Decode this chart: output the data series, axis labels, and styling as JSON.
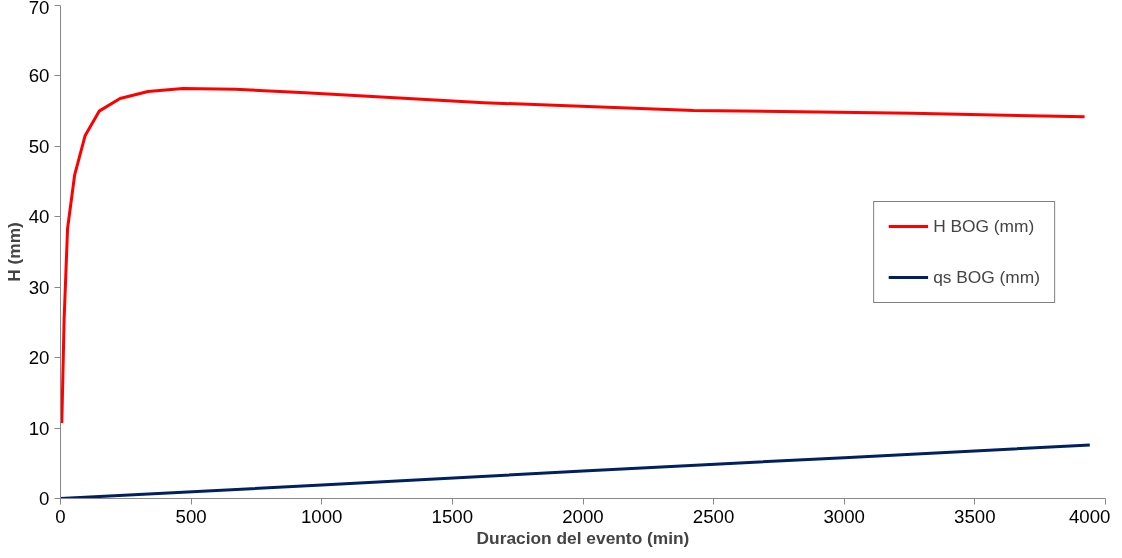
{
  "chart_data": {
    "type": "line",
    "xlabel": "Duracion del evento (min)",
    "ylabel": "H (mm)",
    "xlim": [
      0,
      4000
    ],
    "ylim": [
      0,
      70
    ],
    "xticks": [
      0,
      500,
      1000,
      1500,
      2000,
      2500,
      3000,
      3500,
      4000
    ],
    "yticks": [
      0,
      10,
      20,
      30,
      40,
      50,
      60,
      70
    ],
    "grid": false,
    "legend": "right",
    "marker": "none",
    "line_style": "solid",
    "series": [
      {
        "name": "H BOG (mm)",
        "color": "#ff0000",
        "x": [
          5,
          14,
          27,
          54,
          94,
          148,
          228,
          335,
          469,
          669,
          938,
          1620,
          2423,
          3257,
          3920
        ],
        "values": [
          10.7,
          25.6,
          38.3,
          45.9,
          51.5,
          55.0,
          56.8,
          57.8,
          58.2,
          58.1,
          57.6,
          56.2,
          55.1,
          54.7,
          54.2
        ]
      },
      {
        "name": "qs BOG (mm)",
        "color": "#002060",
        "x": [
          0,
          1000,
          2000,
          3000,
          3940
        ],
        "values": [
          0,
          1.9,
          3.9,
          5.8,
          7.6
        ]
      }
    ]
  }
}
